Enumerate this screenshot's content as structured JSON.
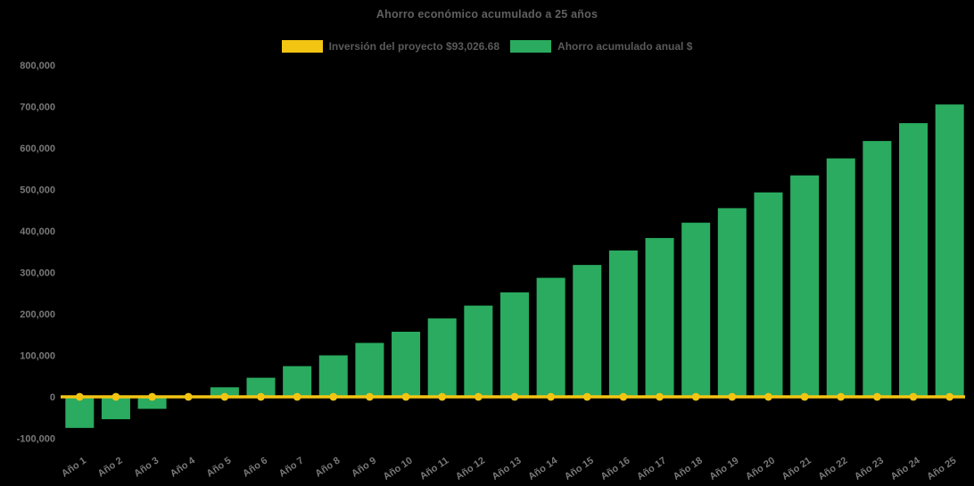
{
  "colors": {
    "background": "#000000",
    "bar_green": "#2aab5f",
    "line_yellow": "#f2c513",
    "title_text": "#606060",
    "legend_text": "#5a5a5a",
    "tick_text": "#787878"
  },
  "chart_data": {
    "type": "bar",
    "title": "Ahorro económico acumulado a 25 años",
    "categories": [
      "Año 1",
      "Año 2",
      "Año 3",
      "Año 4",
      "Año 5",
      "Año 6",
      "Año 7",
      "Año 8",
      "Año 9",
      "Año 10",
      "Año 11",
      "Año 12",
      "Año 13",
      "Año 14",
      "Año 15",
      "Año 16",
      "Año 17",
      "Año 18",
      "Año 19",
      "Año 20",
      "Año 21",
      "Año 22",
      "Año 23",
      "Año 24",
      "Año 25"
    ],
    "series": [
      {
        "name": "Inversión del proyecto $93,026.68",
        "type": "line",
        "color": "#f2c513",
        "values": [
          0,
          0,
          0,
          0,
          0,
          0,
          0,
          0,
          0,
          0,
          0,
          0,
          0,
          0,
          0,
          0,
          0,
          0,
          0,
          0,
          0,
          0,
          0,
          0,
          0
        ]
      },
      {
        "name": "Ahorro acumulado anual $",
        "type": "bar",
        "color": "#2aab5f",
        "values": [
          -75000,
          -54000,
          -29000,
          -1000,
          23000,
          46000,
          74000,
          100000,
          130000,
          157000,
          189000,
          220000,
          252000,
          287000,
          318000,
          353000,
          383000,
          420000,
          455000,
          493000,
          534000,
          575000,
          617000,
          660000,
          705000
        ]
      }
    ],
    "ylim": [
      -100000,
      800000
    ],
    "yticks": [
      {
        "value": 800000,
        "label": "800,000"
      },
      {
        "value": 700000,
        "label": "700,000"
      },
      {
        "value": 600000,
        "label": "600,000"
      },
      {
        "value": 500000,
        "label": "500,000"
      },
      {
        "value": 400000,
        "label": "400,000"
      },
      {
        "value": 300000,
        "label": "300,000"
      },
      {
        "value": 200000,
        "label": "200,000"
      },
      {
        "value": 100000,
        "label": "100,000"
      },
      {
        "value": 0,
        "label": "0"
      },
      {
        "value": -100000,
        "label": "-100,000"
      }
    ],
    "grid": false,
    "legend_position": "top-center",
    "x_tick_rotation": -34
  }
}
